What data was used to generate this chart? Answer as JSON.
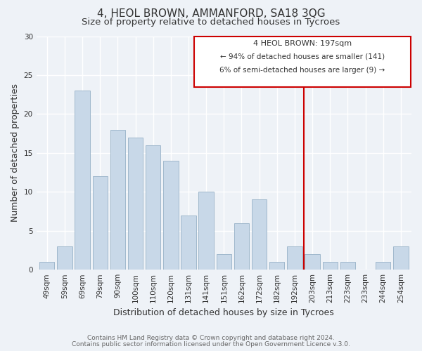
{
  "title": "4, HEOL BROWN, AMMANFORD, SA18 3QG",
  "subtitle": "Size of property relative to detached houses in Tycroes",
  "xlabel": "Distribution of detached houses by size in Tycroes",
  "ylabel": "Number of detached properties",
  "bar_labels": [
    "49sqm",
    "59sqm",
    "69sqm",
    "79sqm",
    "90sqm",
    "100sqm",
    "110sqm",
    "120sqm",
    "131sqm",
    "141sqm",
    "151sqm",
    "162sqm",
    "172sqm",
    "182sqm",
    "192sqm",
    "203sqm",
    "213sqm",
    "223sqm",
    "233sqm",
    "244sqm",
    "254sqm"
  ],
  "bar_values": [
    1,
    3,
    23,
    12,
    18,
    17,
    16,
    14,
    7,
    10,
    2,
    6,
    9,
    1,
    3,
    2,
    1,
    1,
    0,
    1,
    3
  ],
  "bar_color": "#c8d8e8",
  "bar_edge_color": "#a0b8cc",
  "vline_x": 14.5,
  "vline_color": "#cc0000",
  "ylim": [
    0,
    30
  ],
  "yticks": [
    0,
    5,
    10,
    15,
    20,
    25,
    30
  ],
  "annotation_title": "4 HEOL BROWN: 197sqm",
  "annotation_line1": "← 94% of detached houses are smaller (141)",
  "annotation_line2": "6% of semi-detached houses are larger (9) →",
  "annotation_box_color": "#ffffff",
  "annotation_box_edge": "#cc0000",
  "footer1": "Contains HM Land Registry data © Crown copyright and database right 2024.",
  "footer2": "Contains public sector information licensed under the Open Government Licence v.3.0.",
  "background_color": "#eef2f7",
  "grid_color": "#ffffff",
  "title_fontsize": 11,
  "subtitle_fontsize": 9.5,
  "axis_label_fontsize": 9,
  "tick_fontsize": 7.5,
  "footer_fontsize": 6.5,
  "ann_title_fontsize": 8.0,
  "ann_text_fontsize": 7.5
}
